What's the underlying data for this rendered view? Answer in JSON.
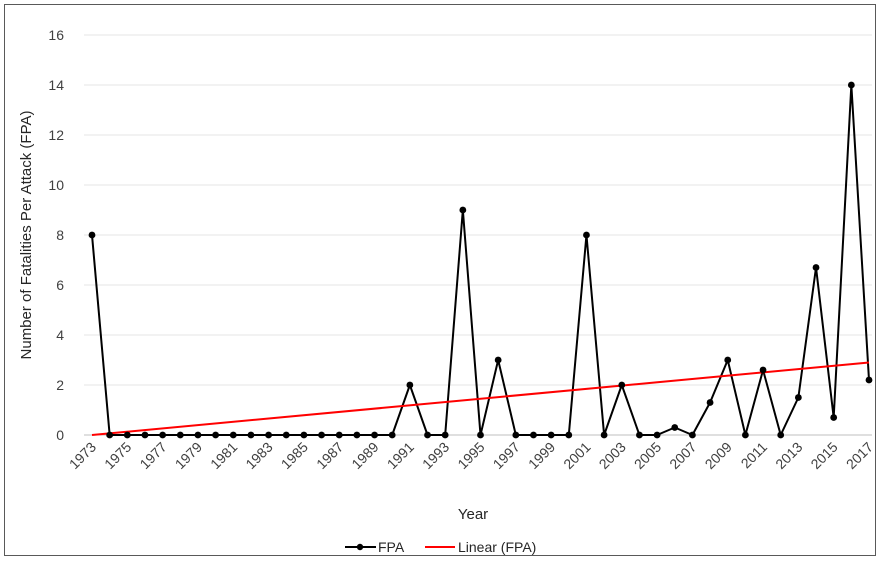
{
  "chart_data": {
    "type": "line",
    "xlabel": "Year",
    "ylabel": "Number of Fatalities Per Attack (FPA)",
    "ylim": [
      0,
      16
    ],
    "yticks": [
      "0",
      "2",
      "4",
      "6",
      "8",
      "10",
      "12",
      "14",
      "16"
    ],
    "x": [
      1973,
      1974,
      1975,
      1976,
      1977,
      1978,
      1979,
      1980,
      1981,
      1982,
      1983,
      1984,
      1985,
      1986,
      1987,
      1988,
      1989,
      1990,
      1991,
      1992,
      1993,
      1994,
      1995,
      1996,
      1997,
      1998,
      1999,
      2000,
      2001,
      2002,
      2003,
      2004,
      2005,
      2006,
      2007,
      2008,
      2009,
      2010,
      2011,
      2012,
      2013,
      2014,
      2015,
      2016,
      2017
    ],
    "xticks": [
      "1973",
      "1975",
      "1977",
      "1979",
      "1981",
      "1983",
      "1985",
      "1987",
      "1989",
      "1991",
      "1993",
      "1995",
      "1997",
      "1999",
      "2001",
      "2003",
      "2005",
      "2007",
      "2009",
      "2011",
      "2013",
      "2015",
      "2017"
    ],
    "grid": true,
    "legend_position": "bottom",
    "series": [
      {
        "name": "FPA",
        "color": "#000000",
        "values": [
          8,
          0,
          0,
          0,
          0,
          0,
          0,
          0,
          0,
          0,
          0,
          0,
          0,
          0,
          0,
          0,
          0,
          0,
          2,
          0,
          0,
          9,
          0,
          3,
          0,
          0,
          0,
          0,
          8,
          0,
          2,
          0,
          0,
          0.3,
          0,
          1.3,
          3,
          0,
          2.6,
          0,
          1.5,
          6.7,
          0.7,
          14,
          2.2
        ]
      },
      {
        "name": "Linear (FPA)",
        "color": "#ff0000",
        "trend_start": 0,
        "trend_end": 2.9
      }
    ]
  }
}
